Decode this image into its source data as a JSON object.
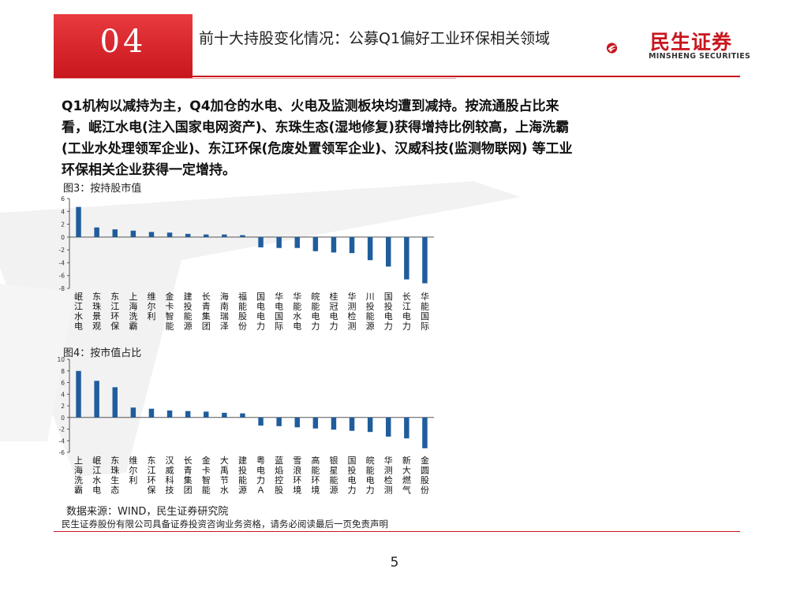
{
  "header": {
    "section_number": "04",
    "title": "前十大持股变化情况：公募Q1偏好工业环保相关领域"
  },
  "logo": {
    "name_cn": "民生证券",
    "name_en": "MINSHENG SECURITIES"
  },
  "body_text": "Q1机构以减持为主，Q4加仓的水电、火电及监测板块均遭到减持。按流通股占比来看，岷江水电(注入国家电网资产)、东珠生态(湿地修复)获得增持比例较高，上海洗霸(工业水处理领军企业)、东江环保(危废处置领军企业)、汉威科技(监测物联网) 等工业环保相关企业获得一定增持。",
  "source": "数据来源：WIND，民生证券研究院",
  "disclaimer": "民生证券股份有限公司具备证券投资咨询业务资格，请务必阅读最后一页免责声明",
  "page_number": "5",
  "colors": {
    "bar": "#1f5d9c",
    "accent": "#c8161d"
  },
  "chart_data": [
    {
      "type": "bar",
      "title": "图3：按持股市值",
      "categories": [
        "岷江水电",
        "东珠景观",
        "东江环保",
        "上海洗霸",
        "维尔利",
        "金卡智能",
        "建投能源",
        "长青集团",
        "海南瑞泽",
        "福能股份",
        "国电电力",
        "华电国际",
        "华能水电",
        "皖能电力",
        "桂冠电力",
        "华测检测",
        "川投能源",
        "国投电力",
        "长江电力",
        "华能国际"
      ],
      "values": [
        4.7,
        1.5,
        1.2,
        1.0,
        0.8,
        0.7,
        0.5,
        0.4,
        0.4,
        0.3,
        -1.6,
        -1.7,
        -1.7,
        -2.2,
        -2.4,
        -2.5,
        -3.6,
        -4.6,
        -6.6,
        -7.2
      ],
      "yticks": [
        6,
        4,
        2,
        0,
        -2,
        -4,
        -6,
        -8
      ],
      "ylim": [
        -8,
        6
      ]
    },
    {
      "type": "bar",
      "title": "图4：按市值占比",
      "categories": [
        "上海洗霸",
        "岷江水电",
        "东珠生态",
        "维尔利",
        "东江环保",
        "汉威科技",
        "长青集团",
        "金卡智能",
        "大禹节水",
        "建投能源",
        "粤电力Ａ",
        "蓝焰控股",
        "雪浪环境",
        "高能环境",
        "银星能源",
        "国投电力",
        "皖能电力",
        "华测检测",
        "新大燃气",
        "金圆股份"
      ],
      "values": [
        8.0,
        6.3,
        5.2,
        1.7,
        1.5,
        1.2,
        1.1,
        1.0,
        0.8,
        0.7,
        -1.4,
        -1.5,
        -1.7,
        -1.9,
        -2.1,
        -2.3,
        -2.5,
        -3.3,
        -3.6,
        -5.3
      ],
      "yticks": [
        10,
        8,
        6,
        4,
        2,
        0,
        -2,
        -4,
        -6
      ],
      "ylim": [
        -6,
        10
      ]
    }
  ]
}
